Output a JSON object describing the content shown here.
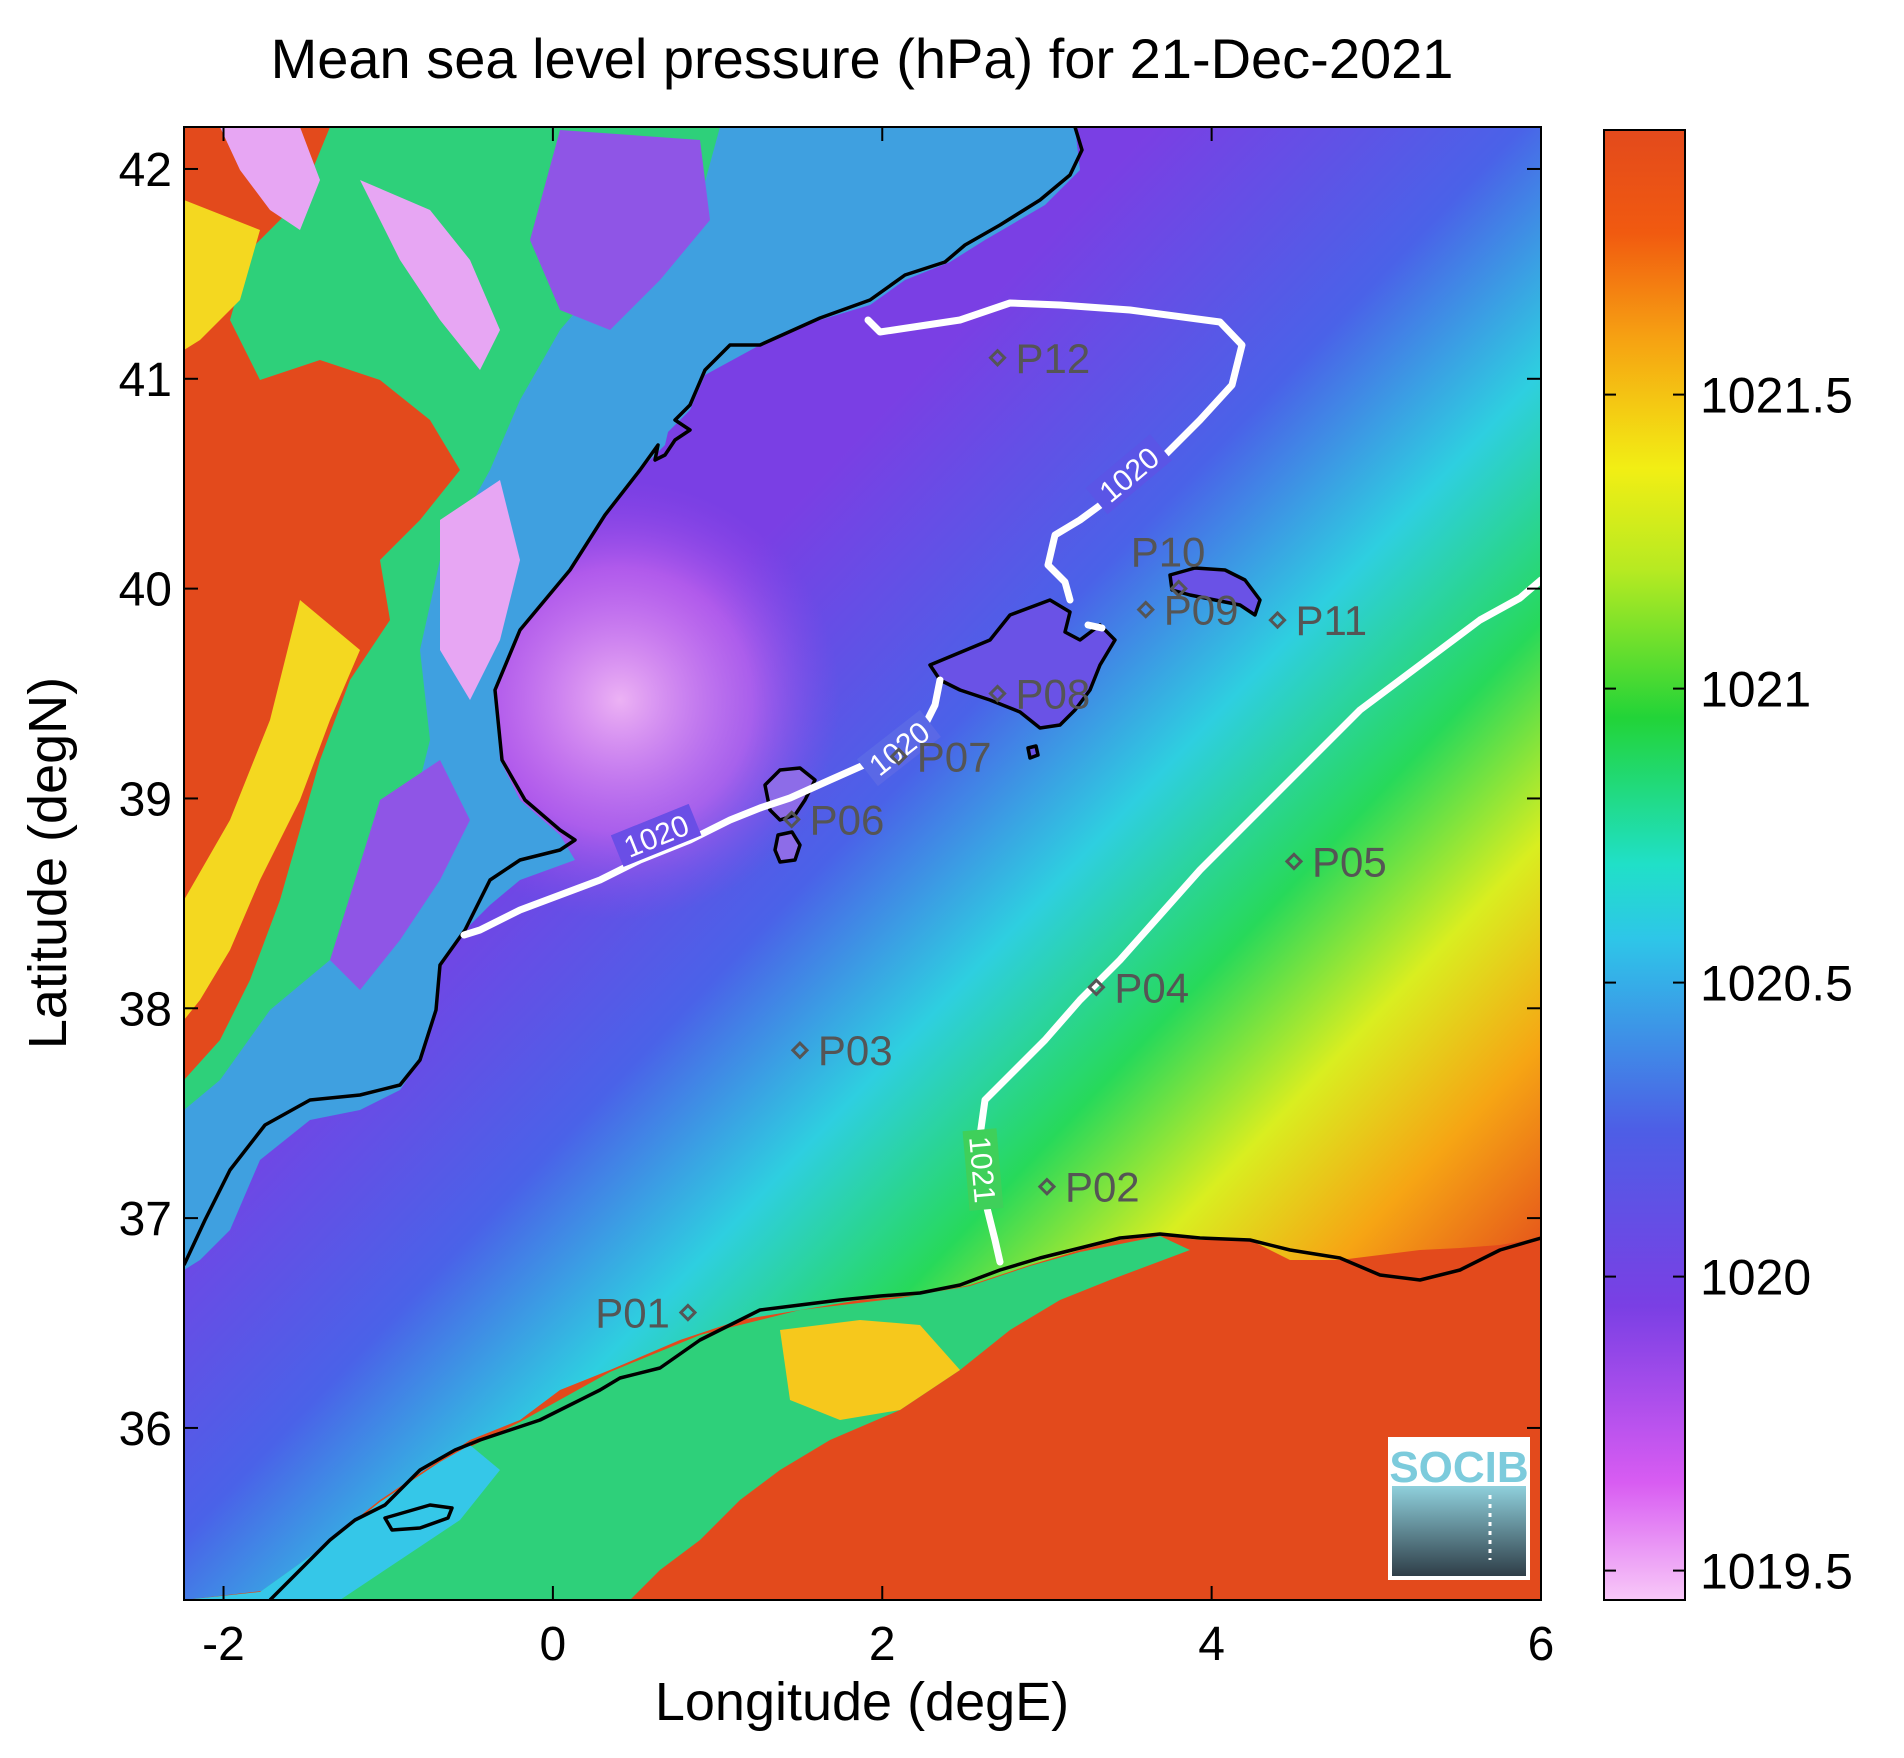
{
  "title": "Mean sea level pressure (hPa) for 21-Dec-2021",
  "xlabel": "Longitude (degE)",
  "ylabel": "Latitude (degN)",
  "x_ticks": [
    "-2",
    "0",
    "2",
    "4",
    "6"
  ],
  "y_ticks": [
    "42",
    "41",
    "40",
    "39",
    "38",
    "37",
    "36"
  ],
  "colorbar": {
    "ticks": [
      "1021.5",
      "1021",
      "1020.5",
      "1020",
      "1019.5"
    ],
    "range": [
      1019.45,
      1021.95
    ]
  },
  "contours": [
    {
      "level": "1020",
      "labels": [
        "1020",
        "1020",
        "1020"
      ]
    },
    {
      "level": "1021",
      "labels": [
        "1021"
      ]
    }
  ],
  "stations": [
    {
      "name": "P01",
      "lon": 0.82,
      "lat": 36.55
    },
    {
      "name": "P02",
      "lon": 3.0,
      "lat": 37.15
    },
    {
      "name": "P03",
      "lon": 1.5,
      "lat": 37.8
    },
    {
      "name": "P04",
      "lon": 3.3,
      "lat": 38.1
    },
    {
      "name": "P05",
      "lon": 4.5,
      "lat": 38.7
    },
    {
      "name": "P06",
      "lon": 1.45,
      "lat": 38.9
    },
    {
      "name": "P07",
      "lon": 2.1,
      "lat": 39.2
    },
    {
      "name": "P08",
      "lon": 2.7,
      "lat": 39.5
    },
    {
      "name": "P09",
      "lon": 3.6,
      "lat": 39.9
    },
    {
      "name": "P10",
      "lon": 3.8,
      "lat": 40.0
    },
    {
      "name": "P11",
      "lon": 4.4,
      "lat": 39.85
    },
    {
      "name": "P12",
      "lon": 2.7,
      "lat": 41.1
    }
  ],
  "logo": "SOCIB",
  "colors": {
    "land_high": "#e34a1c",
    "sea_low": "#7a3fe4",
    "contour": "#ffffff",
    "coast": "#000000",
    "station": "#555555"
  }
}
